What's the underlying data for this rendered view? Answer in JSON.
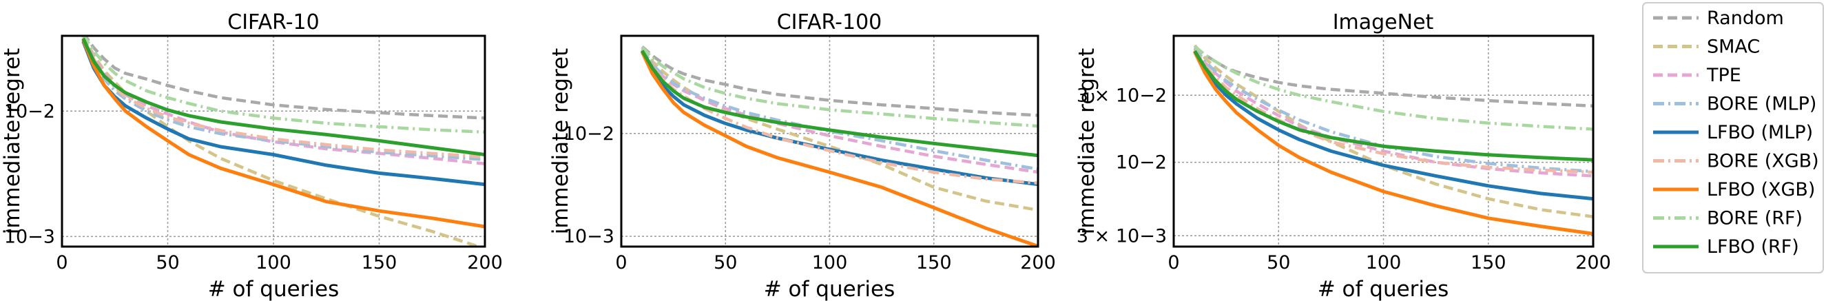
{
  "legend": {
    "items": [
      {
        "label": "Random",
        "color": "#a9a9a9",
        "dash": "dashed"
      },
      {
        "label": "SMAC",
        "color": "#d4c48a",
        "dash": "dashed"
      },
      {
        "label": "TPE",
        "color": "#e6a6d4",
        "dash": "dashed"
      },
      {
        "label": "BORE (MLP)",
        "color": "#9fbfdf",
        "dash": "dashdot"
      },
      {
        "label": "LFBO (MLP)",
        "color": "#1f77b4",
        "dash": "solid"
      },
      {
        "label": "BORE (XGB)",
        "color": "#f2b8a6",
        "dash": "dashdot"
      },
      {
        "label": "LFBO (XGB)",
        "color": "#ff7f0e",
        "dash": "solid"
      },
      {
        "label": "BORE (RF)",
        "color": "#a8d8a0",
        "dash": "dashdot"
      },
      {
        "label": "LFBO (RF)",
        "color": "#2ca02c",
        "dash": "solid"
      }
    ]
  },
  "chart_data": [
    {
      "type": "line",
      "title": "CIFAR-10",
      "xlabel": "# of queries",
      "ylabel": "immediate regret",
      "yscale": "log",
      "xlim": [
        0,
        200
      ],
      "ylim_log10": [
        -3.08,
        -1.4
      ],
      "x_ticks": [
        0,
        50,
        100,
        150,
        200
      ],
      "y_ticks": [
        {
          "label": "10−3",
          "value": 0.001
        },
        {
          "label": "10−2",
          "value": 0.01
        }
      ],
      "grid": true,
      "x": [
        10,
        15,
        20,
        25,
        30,
        40,
        50,
        60,
        75,
        100,
        125,
        150,
        175,
        200
      ],
      "series": [
        {
          "name": "Random",
          "values": [
            0.042,
            0.032,
            0.026,
            0.022,
            0.02,
            0.018,
            0.016,
            0.0145,
            0.0128,
            0.0112,
            0.0103,
            0.0097,
            0.0092,
            0.0088
          ]
        },
        {
          "name": "SMAC",
          "values": [
            0.04,
            0.028,
            0.021,
            0.017,
            0.014,
            0.01,
            0.0075,
            0.0058,
            0.0042,
            0.0028,
            0.002,
            0.00145,
            0.0011,
            0.0008
          ]
        },
        {
          "name": "TPE",
          "values": [
            0.04,
            0.027,
            0.02,
            0.016,
            0.0135,
            0.011,
            0.0095,
            0.0082,
            0.0068,
            0.0057,
            0.005,
            0.0046,
            0.0042,
            0.0038
          ]
        },
        {
          "name": "BORE (MLP)",
          "values": [
            0.038,
            0.025,
            0.018,
            0.0145,
            0.0125,
            0.01,
            0.0085,
            0.0075,
            0.0066,
            0.0058,
            0.0052,
            0.0047,
            0.0044,
            0.0041
          ]
        },
        {
          "name": "LFBO (MLP)",
          "values": [
            0.036,
            0.022,
            0.016,
            0.013,
            0.011,
            0.0088,
            0.0072,
            0.006,
            0.0052,
            0.0045,
            0.0037,
            0.0032,
            0.0029,
            0.0026
          ]
        },
        {
          "name": "BORE (XGB)",
          "values": [
            0.04,
            0.026,
            0.019,
            0.0155,
            0.013,
            0.0105,
            0.009,
            0.008,
            0.007,
            0.006,
            0.0054,
            0.0049,
            0.0046,
            0.0043
          ]
        },
        {
          "name": "LFBO (XGB)",
          "values": [
            0.037,
            0.023,
            0.016,
            0.0125,
            0.01,
            0.0075,
            0.0058,
            0.0045,
            0.0035,
            0.0026,
            0.0019,
            0.0016,
            0.0014,
            0.0012
          ]
        },
        {
          "name": "BORE (RF)",
          "values": [
            0.041,
            0.03,
            0.024,
            0.02,
            0.0175,
            0.0145,
            0.0128,
            0.0115,
            0.01,
            0.0088,
            0.008,
            0.0075,
            0.0071,
            0.0068
          ]
        },
        {
          "name": "LFBO (RF)",
          "values": [
            0.038,
            0.025,
            0.019,
            0.016,
            0.014,
            0.0118,
            0.0102,
            0.0092,
            0.0082,
            0.0072,
            0.0065,
            0.0058,
            0.0051,
            0.0045
          ]
        }
      ]
    },
    {
      "type": "line",
      "title": "CIFAR-100",
      "xlabel": "# of queries",
      "ylabel": "immediate regret",
      "yscale": "log",
      "xlim": [
        0,
        200
      ],
      "ylim_log10": [
        -3.1,
        -1.05
      ],
      "x_ticks": [
        0,
        50,
        100,
        150,
        200
      ],
      "y_ticks": [
        {
          "label": "10−3",
          "value": 0.001
        },
        {
          "label": "10−2",
          "value": 0.01
        }
      ],
      "grid": true,
      "x": [
        10,
        15,
        20,
        25,
        30,
        40,
        50,
        60,
        75,
        100,
        125,
        150,
        175,
        200
      ],
      "series": [
        {
          "name": "Random",
          "values": [
            0.07,
            0.057,
            0.048,
            0.042,
            0.038,
            0.033,
            0.03,
            0.027,
            0.024,
            0.021,
            0.019,
            0.0175,
            0.016,
            0.015
          ]
        },
        {
          "name": "SMAC",
          "values": [
            0.068,
            0.05,
            0.04,
            0.033,
            0.028,
            0.021,
            0.017,
            0.014,
            0.011,
            0.0075,
            0.005,
            0.003,
            0.0022,
            0.0018
          ]
        },
        {
          "name": "TPE",
          "values": [
            0.066,
            0.046,
            0.036,
            0.03,
            0.026,
            0.021,
            0.0175,
            0.015,
            0.0125,
            0.0095,
            0.0075,
            0.006,
            0.005,
            0.0042
          ]
        },
        {
          "name": "BORE (MLP)",
          "values": [
            0.066,
            0.047,
            0.037,
            0.031,
            0.027,
            0.022,
            0.0185,
            0.016,
            0.0135,
            0.0105,
            0.0085,
            0.0068,
            0.0055,
            0.0045
          ]
        },
        {
          "name": "LFBO (MLP)",
          "values": [
            0.063,
            0.04,
            0.029,
            0.023,
            0.019,
            0.015,
            0.0125,
            0.0108,
            0.009,
            0.007,
            0.0055,
            0.0045,
            0.0037,
            0.0032
          ]
        },
        {
          "name": "BORE (XGB)",
          "values": [
            0.065,
            0.044,
            0.034,
            0.027,
            0.023,
            0.0175,
            0.014,
            0.0115,
            0.009,
            0.0068,
            0.0052,
            0.0042,
            0.0036,
            0.0033
          ]
        },
        {
          "name": "LFBO (XGB)",
          "values": [
            0.062,
            0.038,
            0.027,
            0.02,
            0.016,
            0.012,
            0.0095,
            0.0075,
            0.0058,
            0.0042,
            0.003,
            0.0019,
            0.0012,
            0.0008
          ]
        },
        {
          "name": "BORE (RF)",
          "values": [
            0.069,
            0.054,
            0.045,
            0.039,
            0.034,
            0.028,
            0.0245,
            0.022,
            0.0195,
            0.017,
            0.0155,
            0.014,
            0.0128,
            0.0118
          ]
        },
        {
          "name": "LFBO (RF)",
          "values": [
            0.064,
            0.043,
            0.032,
            0.026,
            0.022,
            0.018,
            0.016,
            0.0145,
            0.0128,
            0.0108,
            0.0092,
            0.008,
            0.007,
            0.0061
          ]
        }
      ]
    },
    {
      "type": "line",
      "title": "ImageNet",
      "xlabel": "# of queries",
      "ylabel": "immediate regret",
      "yscale": "log",
      "xlim": [
        0,
        200
      ],
      "ylim_log10": [
        -2.6,
        -1.1
      ],
      "x_ticks": [
        0,
        50,
        100,
        150,
        200
      ],
      "y_ticks": [
        {
          "label": "3 × 10−3",
          "value": 0.003
        },
        {
          "label": "10−2",
          "value": 0.01
        },
        {
          "label": "3 × 10−2",
          "value": 0.03
        }
      ],
      "grid": true,
      "x": [
        10,
        15,
        20,
        25,
        30,
        40,
        50,
        60,
        75,
        100,
        125,
        150,
        175,
        200
      ],
      "series": [
        {
          "name": "Random",
          "values": [
            0.066,
            0.058,
            0.052,
            0.047,
            0.044,
            0.04,
            0.037,
            0.035,
            0.033,
            0.031,
            0.029,
            0.0275,
            0.0262,
            0.0252
          ]
        },
        {
          "name": "SMAC",
          "values": [
            0.068,
            0.055,
            0.047,
            0.041,
            0.036,
            0.029,
            0.023,
            0.0185,
            0.014,
            0.0095,
            0.007,
            0.0055,
            0.0046,
            0.0041
          ]
        },
        {
          "name": "TPE",
          "values": [
            0.064,
            0.051,
            0.043,
            0.037,
            0.032,
            0.026,
            0.0215,
            0.018,
            0.015,
            0.012,
            0.01,
            0.009,
            0.0084,
            0.008
          ]
        },
        {
          "name": "BORE (MLP)",
          "values": [
            0.065,
            0.052,
            0.044,
            0.038,
            0.034,
            0.028,
            0.0235,
            0.02,
            0.0165,
            0.013,
            0.011,
            0.0098,
            0.0091,
            0.0086
          ]
        },
        {
          "name": "LFBO (MLP)",
          "values": [
            0.062,
            0.046,
            0.036,
            0.03,
            0.026,
            0.0205,
            0.017,
            0.0145,
            0.012,
            0.0095,
            0.008,
            0.0068,
            0.006,
            0.0055
          ]
        },
        {
          "name": "BORE (XGB)",
          "values": [
            0.063,
            0.049,
            0.04,
            0.034,
            0.03,
            0.024,
            0.02,
            0.017,
            0.014,
            0.0115,
            0.01,
            0.0092,
            0.0088,
            0.0085
          ]
        },
        {
          "name": "LFBO (XGB)",
          "values": [
            0.061,
            0.043,
            0.033,
            0.027,
            0.0225,
            0.017,
            0.0132,
            0.0108,
            0.0085,
            0.0062,
            0.0049,
            0.004,
            0.0035,
            0.0031
          ]
        },
        {
          "name": "BORE (RF)",
          "values": [
            0.067,
            0.058,
            0.052,
            0.047,
            0.043,
            0.037,
            0.033,
            0.03,
            0.027,
            0.023,
            0.0205,
            0.019,
            0.018,
            0.0172
          ]
        },
        {
          "name": "LFBO (RF)",
          "values": [
            0.062,
            0.047,
            0.038,
            0.032,
            0.028,
            0.023,
            0.0195,
            0.017,
            0.015,
            0.013,
            0.012,
            0.0113,
            0.0108,
            0.0104
          ]
        }
      ]
    }
  ]
}
